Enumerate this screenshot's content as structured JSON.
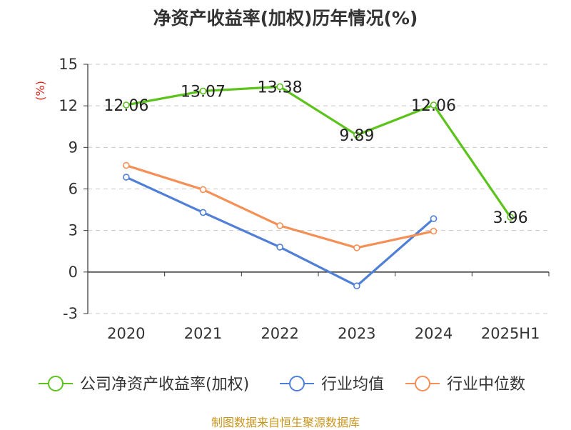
{
  "chart_data": {
    "type": "line",
    "title": "净资产收益率(加权)历年情况(%)",
    "unit_label": "(%)",
    "categories": [
      "2020",
      "2021",
      "2022",
      "2023",
      "2024",
      "2025H1"
    ],
    "ylim": [
      -3,
      15
    ],
    "yticks": [
      -3,
      0,
      3,
      6,
      9,
      12,
      15
    ],
    "ytick_labels": [
      "-3",
      "0",
      "3",
      "6",
      "9",
      "12",
      "15"
    ],
    "grid": true,
    "legend_position": "bottom",
    "series": [
      {
        "name": "公司净资产收益率(加权)",
        "color": "#5cc31c",
        "values": [
          12.06,
          13.07,
          13.38,
          9.89,
          12.06,
          3.96
        ],
        "labels": [
          "12.06",
          "13.07",
          "13.38",
          "9.89",
          "12.06",
          "3.96"
        ]
      },
      {
        "name": "行业均值",
        "color": "#4f7fd6",
        "values": [
          6.85,
          4.3,
          1.8,
          -1.0,
          3.85,
          null
        ]
      },
      {
        "name": "行业中位数",
        "color": "#f58f56",
        "values": [
          7.7,
          5.95,
          3.35,
          1.75,
          2.95,
          null
        ]
      }
    ]
  },
  "source_note": "制图数据来自恒生聚源数据库"
}
